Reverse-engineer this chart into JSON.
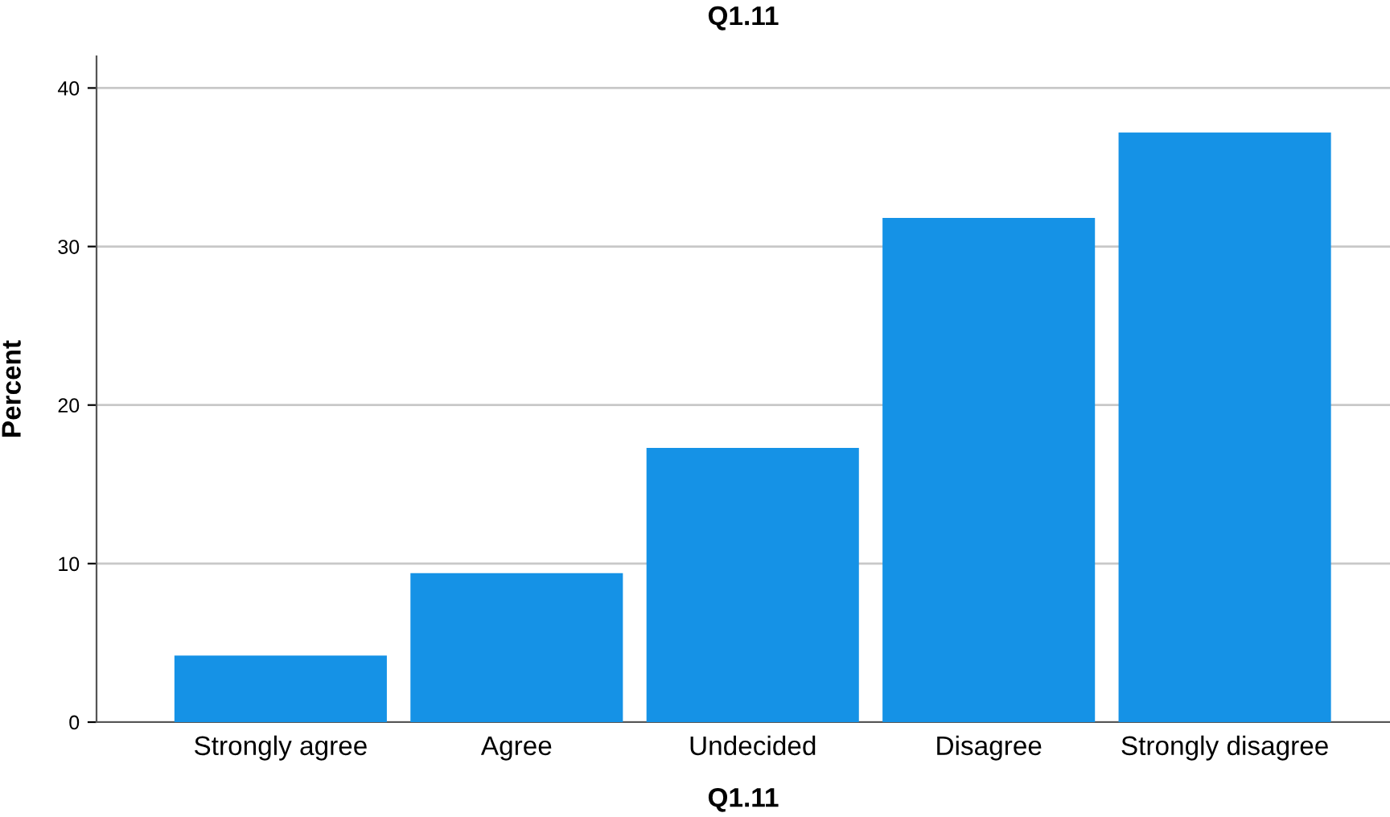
{
  "chart_data": {
    "type": "bar",
    "title": "Q1.11",
    "xlabel": "Q1.11",
    "ylabel": "Percent",
    "categories": [
      "Strongly agree",
      "Agree",
      "Undecided",
      "Disagree",
      "Strongly disagree"
    ],
    "values": [
      4.2,
      9.4,
      17.3,
      31.8,
      37.2
    ],
    "color": "#1592e6",
    "ylim": [
      0,
      42
    ],
    "yticks": [
      0,
      10,
      20,
      30,
      40
    ],
    "grid": "y"
  }
}
